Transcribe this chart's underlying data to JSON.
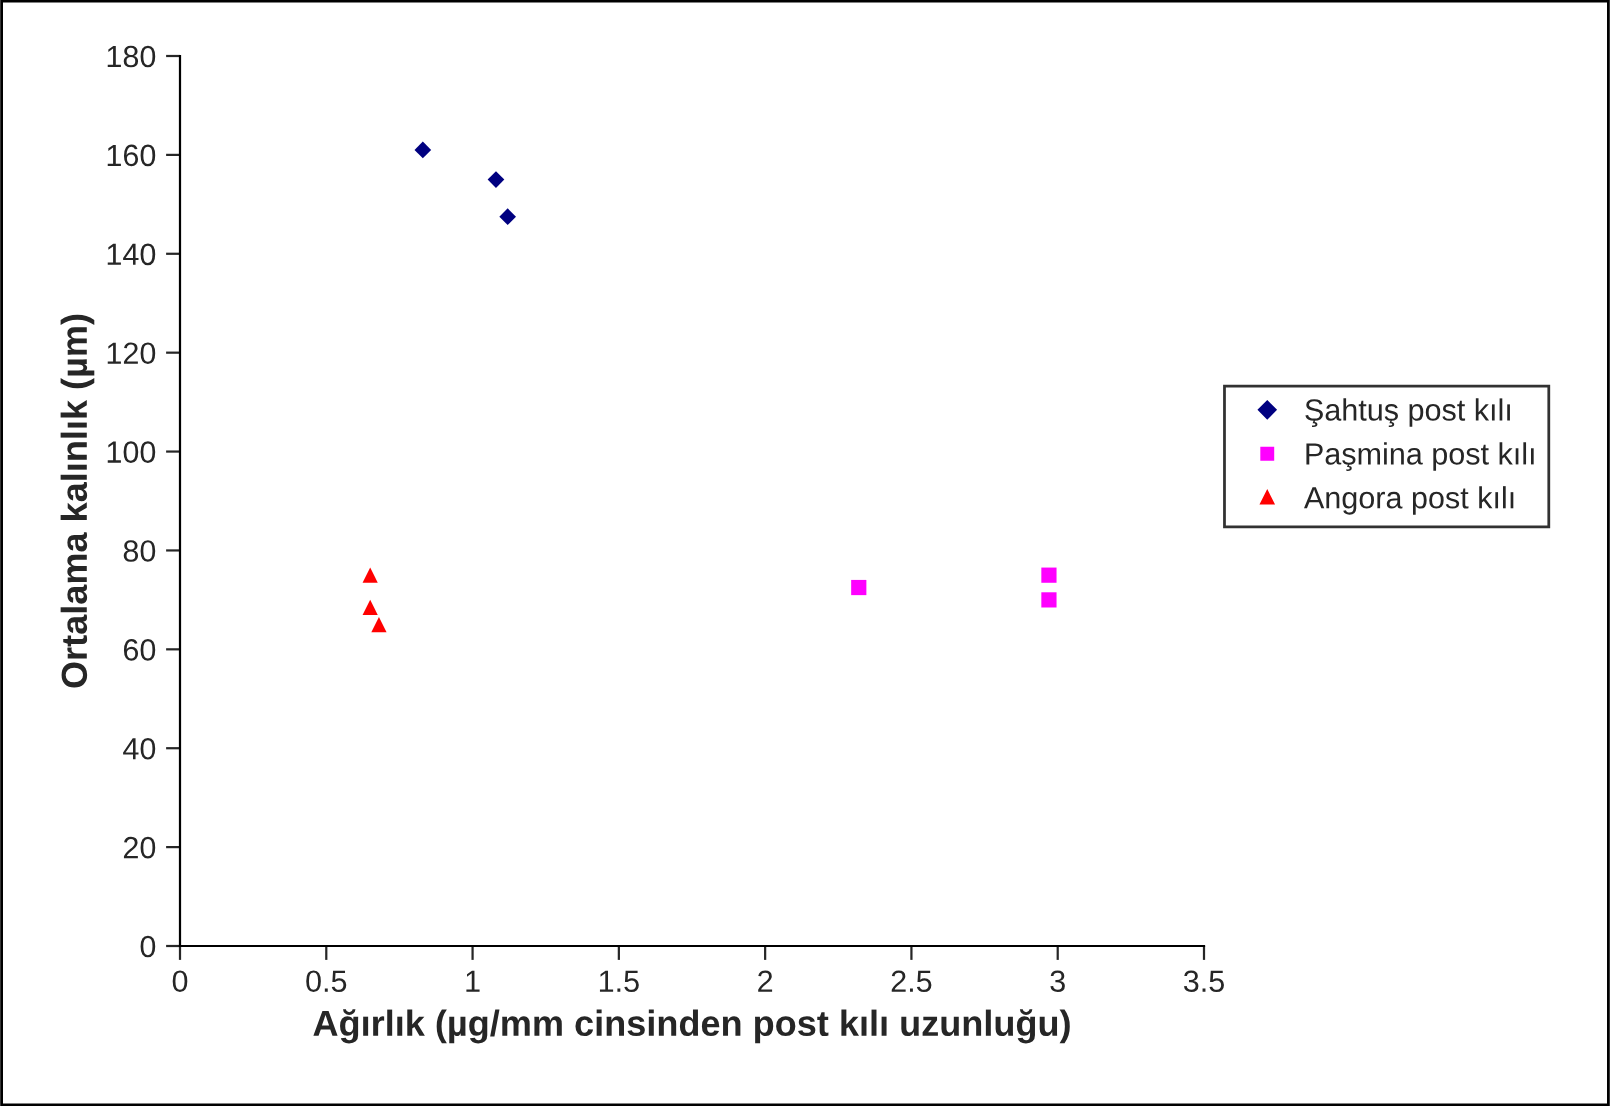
{
  "chart_data": {
    "type": "scatter",
    "xlabel": "Ağırlık (µg/mm cinsinden post kılı uzunluğu)",
    "ylabel": "Ortalama kalınlık (µm)",
    "xlim": [
      0,
      3.5
    ],
    "xticks": [
      0,
      0.5,
      1,
      1.5,
      2,
      2.5,
      3,
      3.5
    ],
    "ylim": [
      0,
      180
    ],
    "yticks": [
      0,
      20,
      40,
      60,
      80,
      100,
      120,
      140,
      160,
      180
    ],
    "grid": false,
    "legend": "right",
    "series": [
      {
        "name": "Şahtuş post kılı",
        "color": "#000080",
        "marker": "diamond",
        "x": [
          0.83,
          1.08,
          1.12
        ],
        "values": [
          161,
          155,
          147.5
        ]
      },
      {
        "name": "Paşmina post kılı",
        "color": "#ff00ff",
        "marker": "square",
        "x": [
          2.32,
          2.97,
          2.97
        ],
        "values": [
          72.5,
          75,
          70
        ]
      },
      {
        "name": "Angora post kılı",
        "color": "#ff0000",
        "marker": "triangle",
        "x": [
          0.65,
          0.65,
          0.68
        ],
        "values": [
          75,
          68.5,
          65
        ]
      }
    ]
  }
}
